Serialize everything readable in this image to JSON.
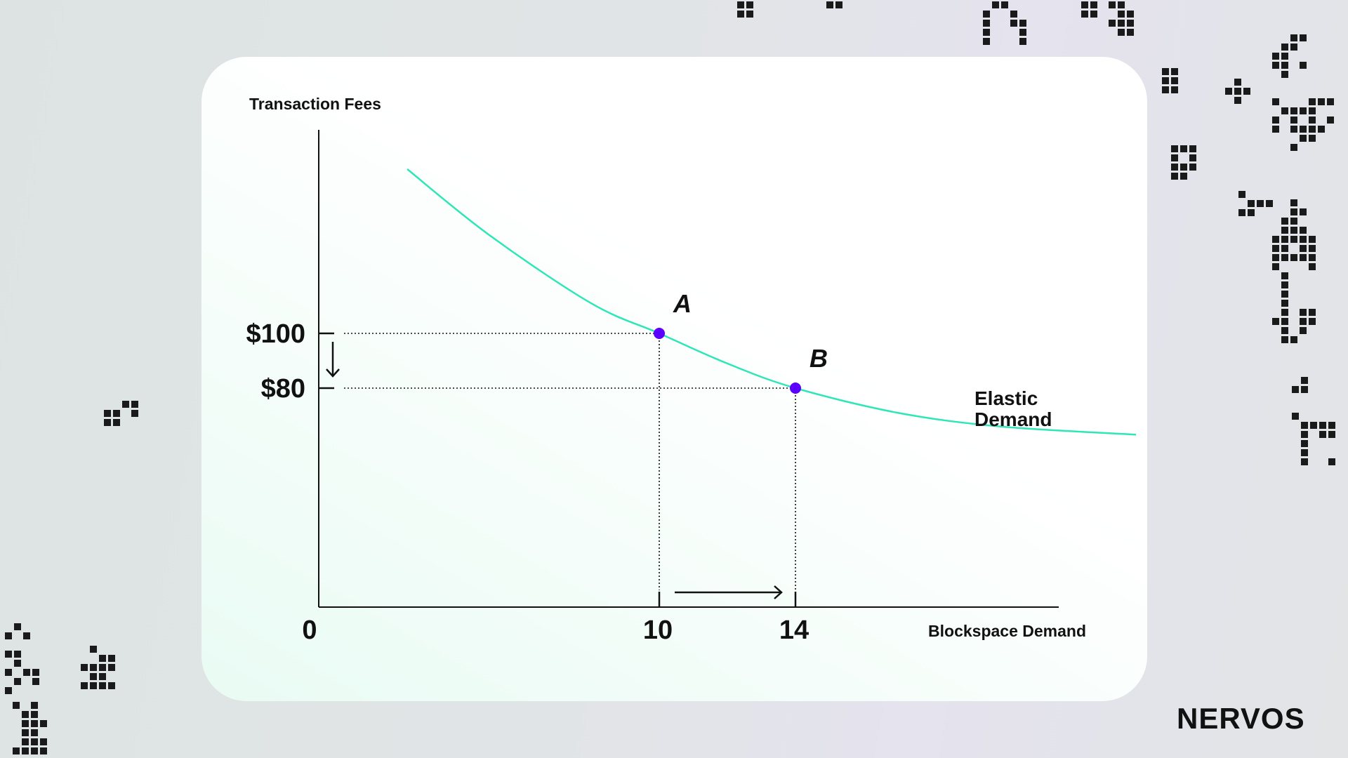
{
  "brand": {
    "logo_text": "NERVOS"
  },
  "colors": {
    "curve": "#2ee6b6",
    "point": "#5b00ff",
    "ink": "#111111"
  },
  "chart_data": {
    "type": "line",
    "title": "",
    "xlabel": "Blockspace Demand",
    "ylabel": "Transaction Fees",
    "grid": false,
    "x_ticks": [
      {
        "value": 0,
        "label": "0"
      },
      {
        "value": 10,
        "label": "10"
      },
      {
        "value": 14,
        "label": "14"
      }
    ],
    "y_ticks": [
      {
        "value": 80,
        "label": "$80"
      },
      {
        "value": 100,
        "label": "$100"
      }
    ],
    "xlim": [
      0,
      28
    ],
    "ylim": [
      0,
      175
    ],
    "series": [
      {
        "name": "Elastic Demand",
        "x": [
          2.6,
          5,
          8,
          10,
          12,
          14,
          17,
          20,
          24
        ],
        "y": [
          160,
          136,
          111,
          100,
          89,
          80,
          71,
          66,
          63
        ]
      }
    ],
    "points": [
      {
        "label": "A",
        "x": 10,
        "y": 100
      },
      {
        "label": "B",
        "x": 14,
        "y": 80
      }
    ],
    "annotations": [
      {
        "text": "Elastic Demand",
        "lines": [
          "Elastic",
          "Demand"
        ]
      }
    ]
  }
}
